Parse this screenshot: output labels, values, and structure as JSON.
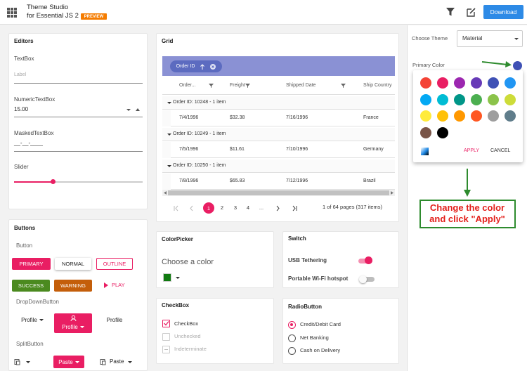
{
  "header": {
    "title": "Theme Studio",
    "subtitle": "for Essential JS 2",
    "badge": "PREVIEW",
    "download": "Download"
  },
  "editors": {
    "title": "Editors",
    "textbox": "TextBox",
    "textbox_placeholder": "Label",
    "numeric": "NumericTextBox",
    "numeric_value": "15.00",
    "masked": "MaskedTextBox",
    "masked_value": "__-__-____",
    "slider": "Slider"
  },
  "buttons": {
    "title": "Buttons",
    "button": "Button",
    "primary": "PRIMARY",
    "normal": "NORMAL",
    "outline": "OUTLINE",
    "success": "SUCCESS",
    "warning": "WARNING",
    "play": "PLAY",
    "dropdown": "DropDownButton",
    "profile": [
      "Profile",
      "Profile",
      "Profile"
    ],
    "split": "SplitButton",
    "paste": [
      "Paste",
      "Paste"
    ]
  },
  "grid": {
    "title": "Grid",
    "group_chip": "Order ID",
    "columns": [
      "Order...",
      "Freight",
      "Shipped Date",
      "Ship Country"
    ],
    "groups": [
      {
        "caption": "Order ID: 10248 - 1 item",
        "row": [
          "7/4/1996",
          "$32.38",
          "7/16/1996",
          "France"
        ]
      },
      {
        "caption": "Order ID: 10249 - 1 item",
        "row": [
          "7/5/1996",
          "$11.61",
          "7/10/1996",
          "Germany"
        ]
      },
      {
        "caption": "Order ID: 10250 - 1 item",
        "row": [
          "7/8/1996",
          "$65.83",
          "7/12/1996",
          "Brazil"
        ]
      }
    ],
    "pages": [
      "1",
      "2",
      "3",
      "4",
      "..."
    ],
    "pager_info": "1 of 64 pages (317 items)"
  },
  "colorpicker": {
    "title": "ColorPicker",
    "label": "Choose a color"
  },
  "switch": {
    "title": "Switch",
    "items": [
      "USB Tethering",
      "Portable Wi-Fi hotspot"
    ]
  },
  "checkbox": {
    "title": "CheckBox",
    "items": [
      "CheckBox",
      "Unchecked",
      "Indeterminate"
    ]
  },
  "radio": {
    "title": "RadioButton",
    "items": [
      "Credit/Debit Card",
      "Net Banking",
      "Cash on Delivery"
    ]
  },
  "sidebar": {
    "choose_theme": "Choose Theme",
    "theme": "Material",
    "primary_color": "Primary Color",
    "palette": [
      "#f44336",
      "#e91e63",
      "#9c27b0",
      "#673ab7",
      "#3f51b5",
      "#2196f3",
      "#03a9f4",
      "#00bcd4",
      "#009688",
      "#4caf50",
      "#8bc34a",
      "#cddc39",
      "#ffeb3b",
      "#ffc107",
      "#ff9800",
      "#ff5722",
      "#9e9e9e",
      "#607d8b",
      "#795548",
      "#000000"
    ],
    "apply": "APPLY",
    "cancel": "CANCEL"
  },
  "annotation": {
    "lines": [
      "Change the color",
      "and click \"Apply\""
    ]
  }
}
